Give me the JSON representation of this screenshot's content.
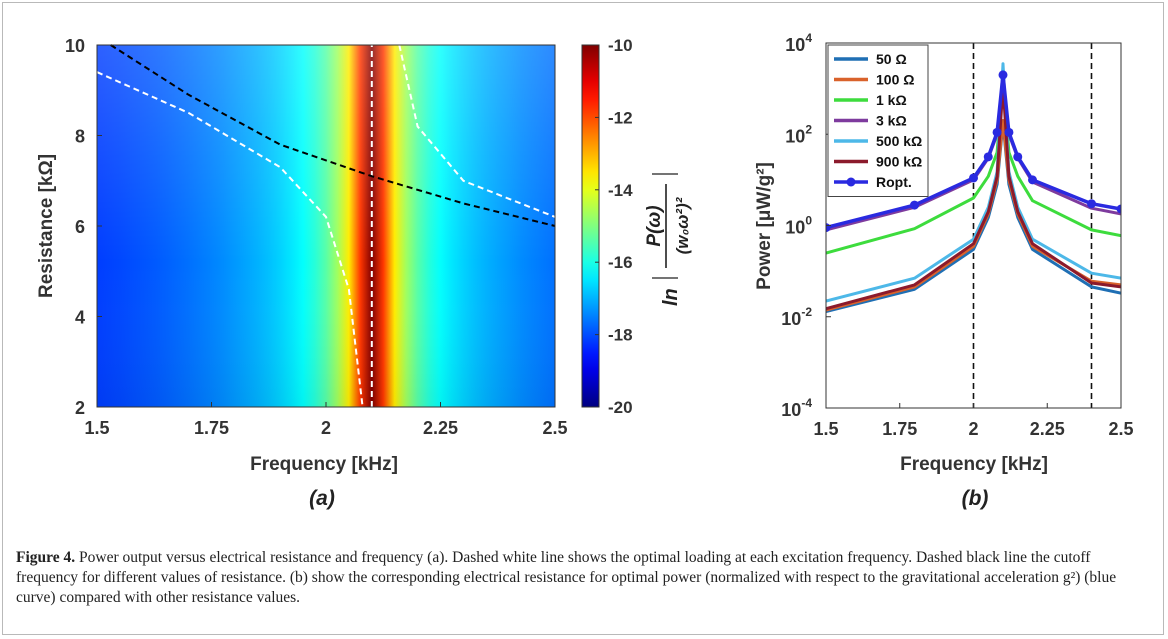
{
  "chart_data": [
    {
      "type": "heatmap",
      "panel_label": "(a)",
      "xlabel": "Frequency [kHz]",
      "ylabel": "Resistance [kΩ]",
      "xlim": [
        1.5,
        2.5
      ],
      "ylim": [
        2,
        10
      ],
      "x_ticks": [
        "1.5",
        "1.75",
        "2",
        "2.25",
        "2.5"
      ],
      "x_tick_values": [
        1.5,
        1.75,
        2.0,
        2.25,
        2.5
      ],
      "y_ticks": [
        "2",
        "4",
        "6",
        "8",
        "10"
      ],
      "y_tick_values": [
        2,
        4,
        6,
        8,
        10
      ],
      "resonance_khz": 2.1,
      "colorbar": {
        "label_expression": "ln |P(ω)/(w₀ω²)²|",
        "range": [
          -20,
          -10
        ],
        "ticks": [
          "-10",
          "-12",
          "-14",
          "-16",
          "-18",
          "-20"
        ],
        "tick_values": [
          -10,
          -12,
          -14,
          -16,
          -18,
          -20
        ],
        "colormap": "jet"
      },
      "lines": [
        {
          "style": "dashed",
          "color": "#ffffff",
          "x": [
            1.5,
            1.7,
            1.9,
            2.0,
            2.05,
            2.08
          ],
          "y": [
            9.4,
            8.5,
            7.3,
            6.2,
            4.6,
            2.0
          ]
        },
        {
          "style": "dashed",
          "color": "#ffffff",
          "x": [
            2.1,
            2.1
          ],
          "y": [
            2,
            10
          ]
        },
        {
          "style": "dashed",
          "color": "#ffffff",
          "x": [
            2.16,
            2.2,
            2.3,
            2.4,
            2.5
          ],
          "y": [
            10.0,
            8.2,
            7.0,
            6.6,
            6.2
          ]
        },
        {
          "style": "dashed",
          "color": "#000000",
          "x": [
            1.53,
            1.7,
            1.9,
            2.1,
            2.3,
            2.5
          ],
          "y": [
            10.0,
            8.9,
            7.8,
            7.1,
            6.5,
            6.0
          ]
        }
      ]
    },
    {
      "type": "line",
      "panel_label": "(b)",
      "xlabel": "Frequency [kHz]",
      "ylabel": "Power [μW/g²]",
      "xlim": [
        1.5,
        2.5
      ],
      "y_scale": "log",
      "ylim": [
        0.0001,
        10000
      ],
      "x_ticks": [
        "1.5",
        "1.75",
        "2",
        "2.25",
        "2.5"
      ],
      "x_tick_values": [
        1.5,
        1.75,
        2.0,
        2.25,
        2.5
      ],
      "y_tick_values": [
        0.0001,
        0.01,
        1,
        100,
        10000
      ],
      "y_tick_base": "10",
      "y_tick_exponents": [
        "-4",
        "-2",
        "0",
        "2",
        "4"
      ],
      "vertical_lines": [
        2.0,
        2.4
      ],
      "legend_position": "top-left",
      "x": [
        1.5,
        1.8,
        2.0,
        2.05,
        2.08,
        2.1,
        2.12,
        2.15,
        2.2,
        2.4,
        2.5
      ],
      "series": [
        {
          "name": "50 Ω",
          "color": "#1f6fb4",
          "values": [
            0.013,
            0.04,
            0.3,
            1.5,
            8,
            180,
            8,
            1.5,
            0.3,
            0.045,
            0.033
          ]
        },
        {
          "name": "100 Ω",
          "color": "#d9622b",
          "values": [
            0.014,
            0.045,
            0.35,
            1.8,
            10,
            200,
            10,
            1.8,
            0.35,
            0.06,
            0.05
          ]
        },
        {
          "name": "1 kΩ",
          "color": "#3ddc3d",
          "values": [
            0.25,
            0.85,
            4,
            12,
            40,
            1500,
            40,
            12,
            3.5,
            0.8,
            0.6
          ]
        },
        {
          "name": "3 kΩ",
          "color": "#7e3b9e",
          "values": [
            0.8,
            2.5,
            10,
            30,
            100,
            1800,
            100,
            30,
            9,
            2.4,
            1.8
          ]
        },
        {
          "name": "500 kΩ",
          "color": "#4db8e8",
          "values": [
            0.022,
            0.07,
            0.5,
            2.5,
            15,
            3500,
            15,
            2.5,
            0.5,
            0.09,
            0.07
          ]
        },
        {
          "name": "900 kΩ",
          "color": "#8b1a2c",
          "values": [
            0.015,
            0.05,
            0.4,
            2,
            12,
            1200,
            12,
            2,
            0.4,
            0.055,
            0.045
          ]
        },
        {
          "name": "Ropt.",
          "color": "#2a2ae0",
          "markers": true,
          "values": [
            0.9,
            2.8,
            11,
            32,
            110,
            2000,
            110,
            32,
            10,
            3,
            2.3
          ]
        }
      ]
    }
  ],
  "caption": {
    "label": "Figure 4.",
    "text": "Power output versus electrical resistance and frequency (a). Dashed white line shows the optimal loading at each excitation frequency. Dashed black line the cutoff frequency for different values of resistance. (b) show the corresponding electrical resistance for optimal power (normalized with respect to the gravitational acceleration g²) (blue curve) compared with other resistance values."
  }
}
